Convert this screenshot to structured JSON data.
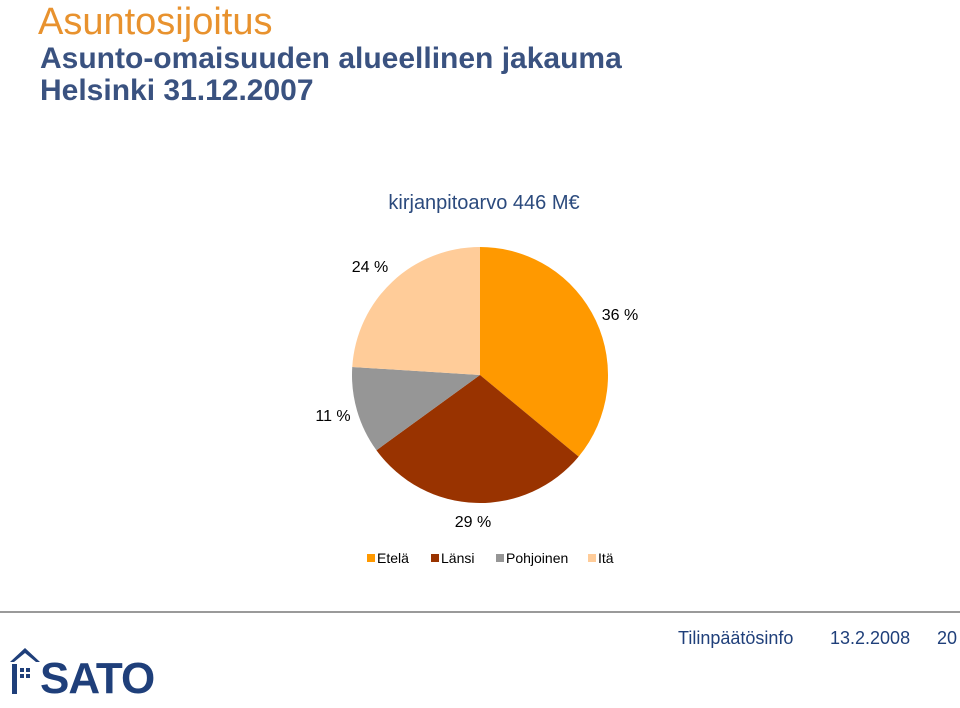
{
  "slide": {
    "title": "Asuntosijoitus",
    "subtitle": "Asunto-omaisuuden alueellinen jakauma",
    "subtitle2": "Helsinki 31.12.2007"
  },
  "footer": {
    "label": "Tilinpäätösinfo",
    "date": "13.2.2008",
    "page": "20",
    "logo_text": "SATO"
  },
  "chart_data": {
    "type": "pie",
    "title": "kirjanpitoarvo 446 M€",
    "categories": [
      "Etelä",
      "Länsi",
      "Pohjoinen",
      "Itä"
    ],
    "values": [
      36,
      29,
      11,
      24
    ],
    "labels": [
      "36 %",
      "29 %",
      "11 %",
      "24 %"
    ],
    "colors": [
      "#ff9900",
      "#993300",
      "#969696",
      "#ffcc99"
    ],
    "legend_position": "bottom"
  }
}
